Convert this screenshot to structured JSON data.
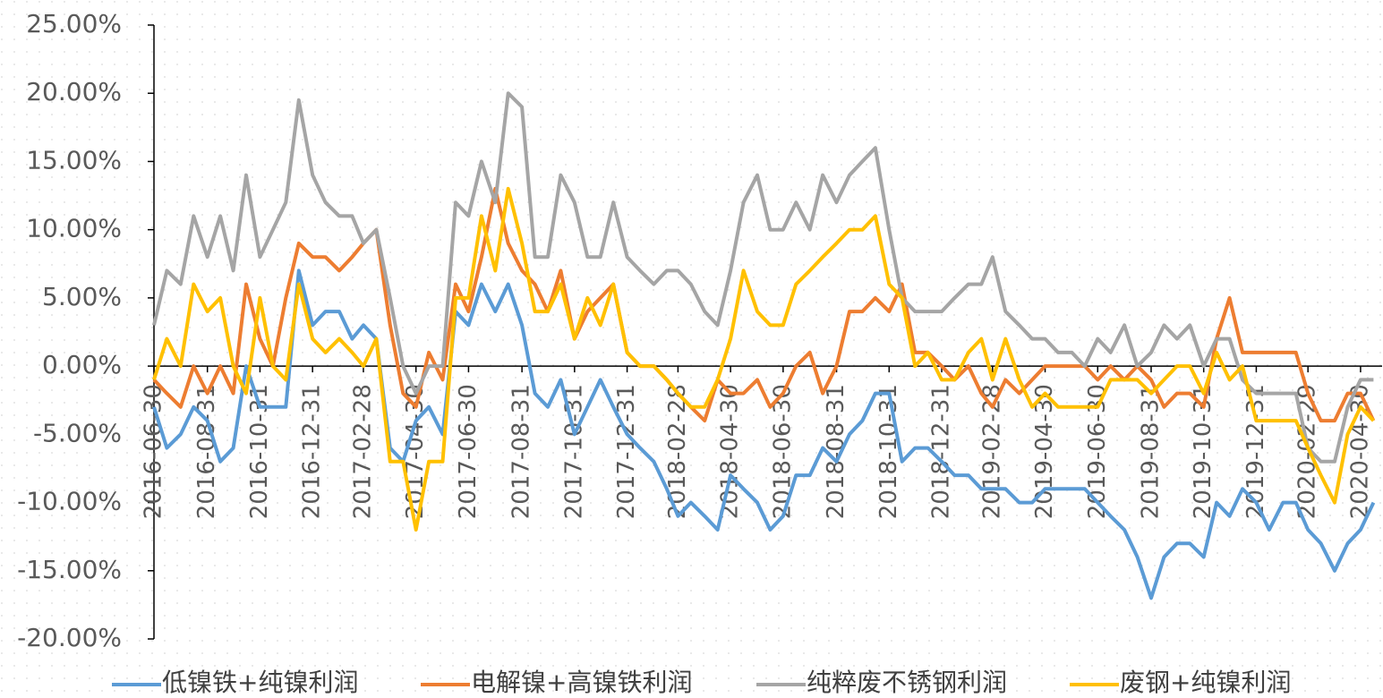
{
  "chart_data": {
    "type": "line",
    "x": [
      "2016-06-30",
      "2016-07-15",
      "2016-07-31",
      "2016-08-15",
      "2016-08-31",
      "2016-09-15",
      "2016-09-30",
      "2016-10-15",
      "2016-10-31",
      "2016-11-15",
      "2016-11-30",
      "2016-12-15",
      "2016-12-31",
      "2017-01-15",
      "2017-01-31",
      "2017-02-15",
      "2017-02-28",
      "2017-03-15",
      "2017-03-31",
      "2017-04-15",
      "2017-04-30",
      "2017-05-15",
      "2017-05-31",
      "2017-06-15",
      "2017-06-30",
      "2017-07-15",
      "2017-07-31",
      "2017-08-15",
      "2017-08-31",
      "2017-09-15",
      "2017-09-30",
      "2017-10-15",
      "2017-10-31",
      "2017-11-15",
      "2017-11-30",
      "2017-12-15",
      "2017-12-31",
      "2018-01-15",
      "2018-01-31",
      "2018-02-15",
      "2018-02-28",
      "2018-03-15",
      "2018-03-31",
      "2018-04-15",
      "2018-04-30",
      "2018-05-15",
      "2018-05-31",
      "2018-06-15",
      "2018-06-30",
      "2018-07-15",
      "2018-07-31",
      "2018-08-15",
      "2018-08-31",
      "2018-09-15",
      "2018-09-30",
      "2018-10-15",
      "2018-10-31",
      "2018-11-15",
      "2018-11-30",
      "2018-12-15",
      "2018-12-31",
      "2019-01-15",
      "2019-01-31",
      "2019-02-15",
      "2019-02-28",
      "2019-03-15",
      "2019-03-31",
      "2019-04-15",
      "2019-04-30",
      "2019-05-15",
      "2019-05-31",
      "2019-06-15",
      "2019-06-30",
      "2019-07-15",
      "2019-07-31",
      "2019-08-15",
      "2019-08-31",
      "2019-09-15",
      "2019-09-30",
      "2019-10-15",
      "2019-10-31",
      "2019-11-15",
      "2019-11-30",
      "2019-12-15",
      "2019-12-31",
      "2020-01-15",
      "2020-01-31",
      "2020-02-15",
      "2020-02-29",
      "2020-03-15",
      "2020-03-31",
      "2020-04-15",
      "2020-04-30",
      "2020-05-15"
    ],
    "series": [
      {
        "name": "低镍铁+纯镍利润",
        "color": "#5b9bd5",
        "values": [
          -3,
          -6,
          -5,
          -3,
          -4,
          -7,
          -6,
          0,
          -3,
          -3,
          -3,
          7,
          3,
          4,
          4,
          2,
          3,
          2,
          -6,
          -7,
          -4,
          -3,
          -5,
          4,
          3,
          6,
          4,
          6,
          3,
          -2,
          -3,
          -1,
          -5,
          -3,
          -1,
          -3,
          -5,
          -6,
          -7,
          -9,
          -11,
          -10,
          -11,
          -12,
          -8,
          -9,
          -10,
          -12,
          -11,
          -8,
          -8,
          -6,
          -7,
          -5,
          -4,
          -2,
          -2,
          -7,
          -6,
          -6,
          -7,
          -8,
          -8,
          -9,
          -9,
          -9,
          -10,
          -10,
          -9,
          -9,
          -9,
          -9,
          -10,
          -11,
          -12,
          -14,
          -17,
          -14,
          -13,
          -13,
          -14,
          -10,
          -11,
          -9,
          -10,
          -12,
          -10,
          -10,
          -12,
          -13,
          -15,
          -13,
          -12,
          -10
        ]
      },
      {
        "name": "电解镍+高镍铁利润",
        "color": "#ed7d31",
        "values": [
          -1,
          -2,
          -3,
          0,
          -2,
          0,
          -2,
          6,
          2,
          0,
          5,
          9,
          8,
          8,
          7,
          8,
          9,
          10,
          3,
          -2,
          -3,
          1,
          -1,
          6,
          4,
          8,
          13,
          9,
          7,
          6,
          4,
          7,
          2,
          4,
          5,
          6,
          1,
          0,
          0,
          -1,
          -2,
          -3,
          -4,
          -1,
          -2,
          -2,
          -1,
          -3,
          -2,
          0,
          1,
          -2,
          0,
          4,
          4,
          5,
          4,
          6,
          1,
          1,
          0,
          -1,
          0,
          -2,
          -3,
          -1,
          -2,
          -1,
          0,
          0,
          0,
          0,
          -1,
          0,
          -1,
          0,
          -1,
          -3,
          -2,
          -2,
          -3,
          2,
          5,
          1,
          1,
          1,
          1,
          1,
          -2,
          -4,
          -4,
          -2,
          -2,
          -4
        ]
      },
      {
        "name": "纯粹废不锈钢利润",
        "color": "#a5a5a5",
        "values": [
          3,
          7,
          6,
          11,
          8,
          11,
          7,
          14,
          8,
          10,
          12,
          19.5,
          14,
          12,
          11,
          11,
          9,
          10,
          5,
          0,
          -2,
          0,
          0,
          12,
          11,
          15,
          12,
          20,
          19,
          8,
          8,
          14,
          12,
          8,
          8,
          12,
          8,
          7,
          6,
          7,
          7,
          6,
          4,
          3,
          7,
          12,
          14,
          10,
          10,
          12,
          10,
          14,
          12,
          14,
          15,
          16,
          10,
          5,
          4,
          4,
          4,
          5,
          6,
          6,
          8,
          4,
          3,
          2,
          2,
          1,
          1,
          0,
          2,
          1,
          3,
          0,
          1,
          3,
          2,
          3,
          0,
          2,
          2,
          -1,
          -2,
          -2,
          -2,
          -2,
          -6,
          -7,
          -7,
          -3,
          -1,
          -1
        ]
      },
      {
        "name": "废钢+纯镍利润",
        "color": "#ffc000",
        "values": [
          -1,
          2,
          0,
          6,
          4,
          5,
          0,
          -2,
          5,
          0,
          -1,
          6,
          2,
          1,
          2,
          1,
          0,
          2,
          -7,
          -7,
          -12,
          -7,
          -7,
          5,
          5,
          11,
          7,
          13,
          9,
          4,
          4,
          6,
          2,
          5,
          3,
          6,
          1,
          0,
          0,
          -1,
          -2,
          -3,
          -3,
          -1,
          2,
          7,
          4,
          3,
          3,
          6,
          7,
          8,
          9,
          10,
          10,
          11,
          6,
          5,
          0,
          1,
          -1,
          -1,
          1,
          2,
          -1,
          2,
          -1,
          -3,
          -2,
          -3,
          -3,
          -3,
          -3,
          -1,
          -1,
          -1,
          -2,
          -1,
          0,
          0,
          -2,
          1,
          -1,
          0,
          -4,
          -4,
          -4,
          -4,
          -6,
          -8,
          -10,
          -5,
          -3,
          -4
        ]
      }
    ],
    "xlim": [
      "2016-06-30",
      "2020-05-25"
    ],
    "xticks": [
      "2016-06-30",
      "2016-08-31",
      "2016-10-31",
      "2016-12-31",
      "2017-02-28",
      "2017-04-30",
      "2017-06-30",
      "2017-08-31",
      "2017-10-31",
      "2017-12-31",
      "2018-02-28",
      "2018-04-30",
      "2018-06-30",
      "2018-08-31",
      "2018-10-31",
      "2018-12-31",
      "2019-02-28",
      "2019-04-30",
      "2019-06-30",
      "2019-08-31",
      "2019-10-31",
      "2019-12-31",
      "2020-02-29",
      "2020-04-30"
    ],
    "ylim": [
      -20,
      25
    ],
    "yticks": [
      {
        "value": -20,
        "label": "-20.00%"
      },
      {
        "value": -15,
        "label": "-15.00%"
      },
      {
        "value": -10,
        "label": "-10.00%"
      },
      {
        "value": -5,
        "label": "-5.00%"
      },
      {
        "value": 0,
        "label": "0.00%"
      },
      {
        "value": 5,
        "label": "5.00%"
      },
      {
        "value": 10,
        "label": "10.00%"
      },
      {
        "value": 15,
        "label": "15.00%"
      },
      {
        "value": 20,
        "label": "20.00%"
      },
      {
        "value": 25,
        "label": "25.00%"
      }
    ],
    "legend": "bottom"
  }
}
